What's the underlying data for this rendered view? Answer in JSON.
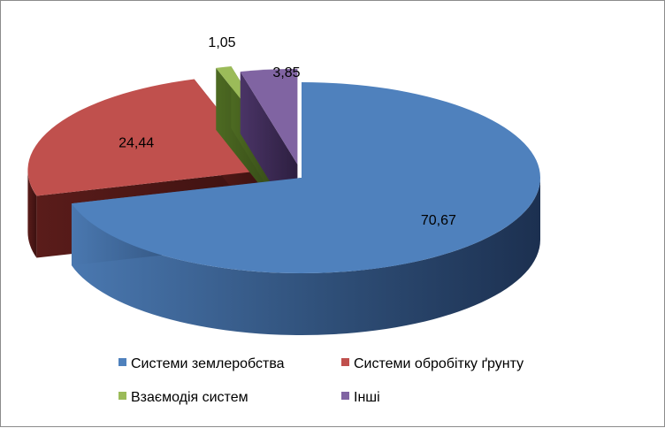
{
  "chart_data": {
    "type": "pie",
    "variant": "3d-exploded",
    "categories": [
      "Системи землеробства",
      "Системи обробітку ґрунту",
      "Взаємодія систем",
      "Інші"
    ],
    "values": [
      70.67,
      24.44,
      1.05,
      3.85
    ],
    "value_labels": [
      "70,67",
      "24,44",
      "1,05",
      "3,85"
    ],
    "colors": [
      "#4F81BD",
      "#C0504D",
      "#9BBB59",
      "#8064A2"
    ],
    "legend_position": "bottom",
    "title": ""
  }
}
